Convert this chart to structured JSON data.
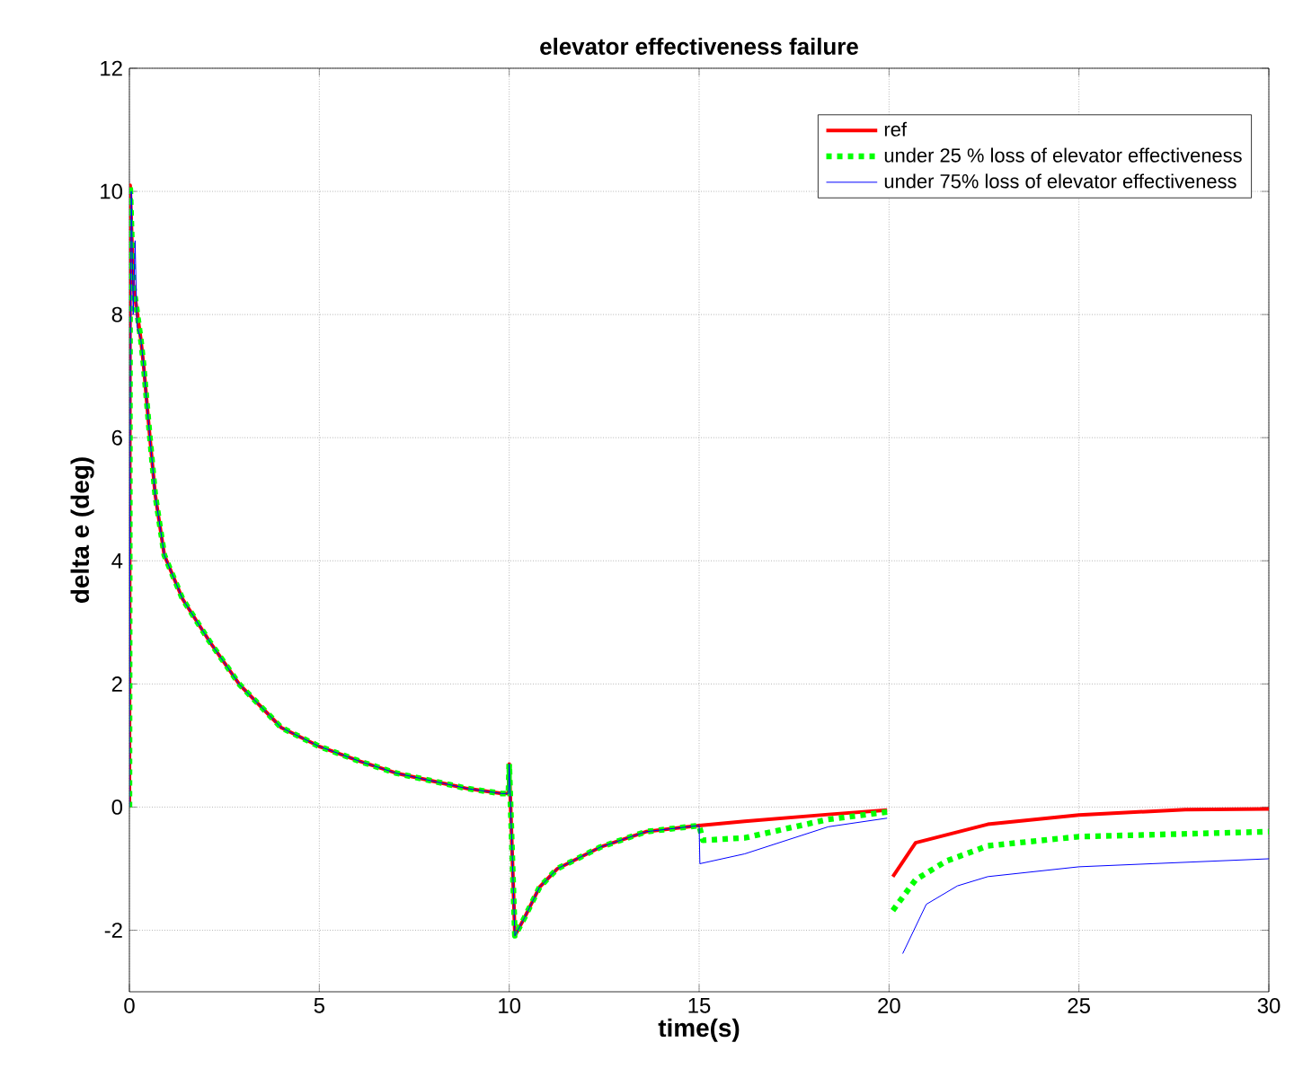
{
  "chart_data": {
    "type": "line",
    "title": "elevator effectiveness failure",
    "xlabel": "time(s)",
    "ylabel": "delta e (deg)",
    "xlim": [
      0,
      30
    ],
    "ylim": [
      -3,
      12
    ],
    "xticks": [
      0,
      5,
      10,
      15,
      20,
      25,
      30
    ],
    "yticks": [
      -2,
      0,
      2,
      4,
      6,
      8,
      10,
      12
    ],
    "grid": true,
    "legend": "top right",
    "series": [
      {
        "name": "ref",
        "color": "#ff0000",
        "line_style": "solid",
        "x": [
          0,
          0.02,
          0.1,
          0.3,
          0.37,
          0.53,
          0.68,
          0.92,
          1.4,
          2.11,
          2.9,
          4.0,
          4.98,
          6.08,
          7.03,
          8.9,
          9.8,
          9.98,
          10.0,
          10.15,
          10.4,
          10.8,
          11.27,
          12.4,
          13.6,
          15.0,
          16.2,
          18.4,
          19.95,
          20.0,
          20.1,
          20.7,
          22.6,
          25,
          27.8,
          30
        ],
        "values": [
          0,
          10.1,
          8.5,
          7.6,
          7.2,
          6.07,
          5.07,
          4.09,
          3.38,
          2.69,
          1.99,
          1.29,
          0.99,
          0.74,
          0.55,
          0.3,
          0.22,
          0.22,
          0.7,
          -2.09,
          -1.8,
          -1.3,
          -1.0,
          -0.65,
          -0.4,
          -0.3,
          -0.23,
          -0.12,
          -0.05,
          null,
          -1.13,
          -0.58,
          -0.28,
          -0.13,
          -0.04,
          -0.03
        ]
      },
      {
        "name": "under 25 % loss of elevator effectiveness",
        "color": "#00ff00",
        "line_style": "dotted",
        "x": [
          0,
          0.02,
          0.1,
          0.3,
          0.37,
          0.53,
          0.68,
          0.92,
          1.4,
          2.11,
          2.9,
          4.0,
          4.98,
          6.08,
          7.03,
          8.9,
          9.8,
          9.98,
          10.0,
          10.15,
          10.4,
          10.8,
          11.27,
          12.4,
          13.6,
          15.0,
          15.1,
          16.2,
          18.4,
          19.95,
          20.0,
          20.1,
          20.7,
          21.5,
          22.6,
          25,
          30
        ],
        "values": [
          0,
          10.1,
          8.5,
          7.6,
          7.2,
          6.07,
          5.07,
          4.09,
          3.38,
          2.69,
          1.99,
          1.29,
          0.99,
          0.74,
          0.55,
          0.3,
          0.22,
          0.22,
          0.7,
          -2.09,
          -1.8,
          -1.3,
          -1.0,
          -0.65,
          -0.4,
          -0.3,
          -0.54,
          -0.5,
          -0.2,
          -0.08,
          null,
          -1.68,
          -1.18,
          -0.88,
          -0.63,
          -0.48,
          -0.4
        ]
      },
      {
        "name": "under 75% loss of elevator effectiveness",
        "color": "#0000ff",
        "line_style": "solid",
        "x": [
          0,
          0.02,
          0.05,
          0.1,
          0.15,
          0.2,
          0.3,
          0.37,
          0.53,
          0.68,
          0.92,
          1.4,
          2.11,
          2.9,
          4.0,
          4.98,
          6.08,
          7.03,
          8.9,
          9.8,
          9.98,
          10.0,
          10.15,
          10.4,
          10.8,
          11.27,
          12.4,
          13.6,
          15.0,
          15.02,
          16.2,
          18.4,
          19.95,
          20.0,
          20.2,
          20.36,
          20.98,
          21.8,
          22.6,
          25,
          30
        ],
        "values": [
          0,
          6.5,
          10,
          8.0,
          9.2,
          7.8,
          7.6,
          7.2,
          6.07,
          5.07,
          4.09,
          3.38,
          2.69,
          1.99,
          1.29,
          0.99,
          0.74,
          0.55,
          0.3,
          0.22,
          0.22,
          0.7,
          -2.09,
          -1.8,
          -1.3,
          -1.0,
          -0.65,
          -0.4,
          -0.3,
          -0.92,
          -0.76,
          -0.32,
          -0.18,
          null,
          null,
          -2.38,
          -1.58,
          -1.28,
          -1.13,
          -0.97,
          -0.84
        ]
      }
    ]
  }
}
